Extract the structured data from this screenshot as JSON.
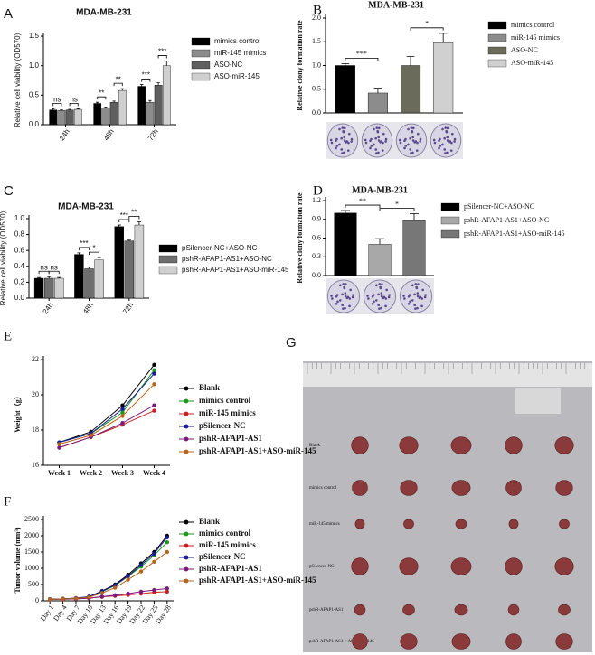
{
  "chart_data": [
    {
      "type": "bar",
      "panel": "A",
      "title": "MDA-MB-231",
      "ylabel": "Relative cell viability (OD570)",
      "categories": [
        "24h",
        "48h",
        "72h"
      ],
      "series": [
        {
          "name": "mimics control",
          "color": "#000000",
          "values": [
            0.25,
            0.36,
            0.65
          ],
          "errors": [
            0.02,
            0.02,
            0.03
          ]
        },
        {
          "name": "miR-145 mimics",
          "color": "#8c8c8c",
          "values": [
            0.24,
            0.28,
            0.38
          ],
          "errors": [
            0.01,
            0.02,
            0.03
          ]
        },
        {
          "name": "ASO-NC",
          "color": "#5f5f5f",
          "values": [
            0.25,
            0.38,
            0.67
          ],
          "errors": [
            0.01,
            0.02,
            0.04
          ]
        },
        {
          "name": "ASO-miR-145",
          "color": "#cfcfcf",
          "values": [
            0.26,
            0.58,
            1.0
          ],
          "errors": [
            0.01,
            0.03,
            0.08
          ]
        }
      ],
      "ylim": [
        0,
        1.5
      ],
      "yticks": [
        {
          "value": 0,
          "label": "0.0"
        },
        0.5,
        {
          "value": 1,
          "label": "1.0"
        },
        1.5
      ],
      "annotations": [
        "ns",
        "ns",
        "**",
        "**",
        "***",
        "***"
      ]
    },
    {
      "type": "bar",
      "panel": "B",
      "title": "MDA-MB-231",
      "ylabel": "Relative clony formation rate",
      "categories": [
        null
      ],
      "series": [
        {
          "name": "mimics control",
          "color": "#000000",
          "values": [
            1.0
          ],
          "errors": [
            0.04
          ]
        },
        {
          "name": "miR-145 mimics",
          "color": "#8c8c8c",
          "values": [
            0.42
          ],
          "errors": [
            0.1
          ]
        },
        {
          "name": "ASO-NC",
          "color": "#6b6b5c",
          "values": [
            1.0
          ],
          "errors": [
            0.19
          ]
        },
        {
          "name": "ASO-miR-145",
          "color": "#d0d0d0",
          "values": [
            1.48
          ],
          "errors": [
            0.2
          ]
        }
      ],
      "ylim": [
        0,
        2
      ],
      "yticks": [
        {
          "value": 0,
          "label": "0.0"
        },
        0.5,
        {
          "value": 1,
          "label": "1.0"
        },
        1.5,
        {
          "value": 2,
          "label": "2.0"
        }
      ],
      "annotations": [
        "***",
        "*"
      ]
    },
    {
      "type": "bar",
      "panel": "C",
      "title": "MDA-MB-231",
      "ylabel": "Relative cell viability (OD570)",
      "categories": [
        "24h",
        "48h",
        "72h"
      ],
      "series": [
        {
          "name": "pSilencer-NC+ASO-NC",
          "color": "#000000",
          "values": [
            0.25,
            0.55,
            0.9
          ],
          "errors": [
            0.01,
            0.02,
            0.02
          ]
        },
        {
          "name": "pshR-AFAP1-AS1+ASO-NC",
          "color": "#6e6e6e",
          "values": [
            0.25,
            0.37,
            0.72
          ],
          "errors": [
            0.02,
            0.02,
            0.01
          ]
        },
        {
          "name": "pshR-AFAP1-AS1+ASO-miR-145",
          "color": "#d0d0d0",
          "values": [
            0.25,
            0.48,
            0.92
          ],
          "errors": [
            0.01,
            0.03,
            0.04
          ]
        }
      ],
      "ylim": [
        0,
        1
      ],
      "yticks": [
        {
          "value": 0,
          "label": "0.0"
        },
        0.2,
        0.4,
        0.6,
        0.8,
        {
          "value": 1,
          "label": "1.0"
        }
      ],
      "annotations": [
        "ns",
        "ns",
        "***",
        "*",
        "***",
        "**"
      ]
    },
    {
      "type": "bar",
      "panel": "D",
      "title": "MDA-MB-231",
      "ylabel": "Relative clony formation rate",
      "categories": [
        null
      ],
      "series": [
        {
          "name": "pSilencer-NC+ASO-NC",
          "color": "#000000",
          "values": [
            1.0
          ],
          "errors": [
            0.04
          ]
        },
        {
          "name": "pshR-AFAP1-AS1+ASO-NC",
          "color": "#a8a8a8",
          "values": [
            0.5
          ],
          "errors": [
            0.09
          ]
        },
        {
          "name": "pshR-AFAP1-AS1+ASO-miR-145",
          "color": "#777777",
          "values": [
            0.88
          ],
          "errors": [
            0.11
          ]
        }
      ],
      "ylim": [
        0,
        1.2
      ],
      "yticks": [
        {
          "value": 0,
          "label": "0.0"
        },
        0.3,
        0.6,
        0.9,
        1.2
      ],
      "annotations": [
        "**",
        "*"
      ]
    },
    {
      "type": "line",
      "panel": "E",
      "ylabel": "Weight（g）",
      "categories": [
        "Week 1",
        "Week 2",
        "Week 3",
        "Week 4"
      ],
      "series": [
        {
          "name": "Blank",
          "color": "#000000",
          "values": [
            17.3,
            17.9,
            19.4,
            21.7
          ]
        },
        {
          "name": "mimics control",
          "color": "#1a9a1a",
          "values": [
            17.3,
            17.8,
            19.0,
            21.4
          ]
        },
        {
          "name": "miR-145 mimics",
          "color": "#cc2020",
          "values": [
            17.0,
            17.6,
            18.3,
            19.1
          ]
        },
        {
          "name": "pSilencer-NC",
          "color": "#1a1a9a",
          "values": [
            17.3,
            17.8,
            19.2,
            21.2
          ]
        },
        {
          "name": "pshR-AFAP1-AS1",
          "color": "#7a1a7a",
          "values": [
            17.0,
            17.6,
            18.4,
            19.4
          ]
        },
        {
          "name": "pshR-AFAP1-AS1+ASO-miR-145",
          "color": "#b5651d",
          "values": [
            17.2,
            17.7,
            18.8,
            20.6
          ]
        }
      ],
      "ylim": [
        16,
        22
      ],
      "yticks": [
        16,
        18,
        20,
        22
      ]
    },
    {
      "type": "line",
      "panel": "F",
      "ylabel": "Tumor volume (mm³)",
      "categories": [
        "Day 1",
        "Day 4",
        "Day 7",
        "Day 10",
        "Day 13",
        "Day 16",
        "Day 19",
        "Day 22",
        "Day 25",
        "Day 28"
      ],
      "series": [
        {
          "name": "Blank",
          "color": "#000000",
          "values": [
            50,
            60,
            80,
            130,
            300,
            500,
            800,
            1150,
            1500,
            2000
          ]
        },
        {
          "name": "mimics control",
          "color": "#1a9a1a",
          "values": [
            50,
            55,
            75,
            120,
            280,
            470,
            750,
            1050,
            1400,
            1800
          ]
        },
        {
          "name": "miR-145 mimics",
          "color": "#cc2020",
          "values": [
            40,
            50,
            60,
            80,
            120,
            150,
            180,
            220,
            260,
            280
          ]
        },
        {
          "name": "pSilencer-NC",
          "color": "#1a1a9a",
          "values": [
            50,
            60,
            80,
            125,
            290,
            480,
            760,
            1100,
            1450,
            1950
          ]
        },
        {
          "name": "pshR-AFAP1-AS1",
          "color": "#7a1a7a",
          "values": [
            40,
            50,
            60,
            80,
            130,
            170,
            220,
            280,
            330,
            380
          ]
        },
        {
          "name": "pshR-AFAP1-AS1+ASO-miR-145",
          "color": "#b5651d",
          "values": [
            45,
            55,
            70,
            110,
            240,
            400,
            650,
            900,
            1200,
            1500
          ]
        }
      ],
      "ylim": [
        0,
        2500
      ],
      "yticks": [
        0,
        500,
        1000,
        1500,
        2000,
        2500
      ]
    }
  ],
  "photo": {
    "panel": "G",
    "row_labels": [
      "Blank",
      "mimics control",
      "miR-145 mimics",
      "pSilencer-NC",
      "pshR-AFAP1-AS1",
      "pshR-AFAP1-AS1 + ASO-miR-145"
    ]
  }
}
